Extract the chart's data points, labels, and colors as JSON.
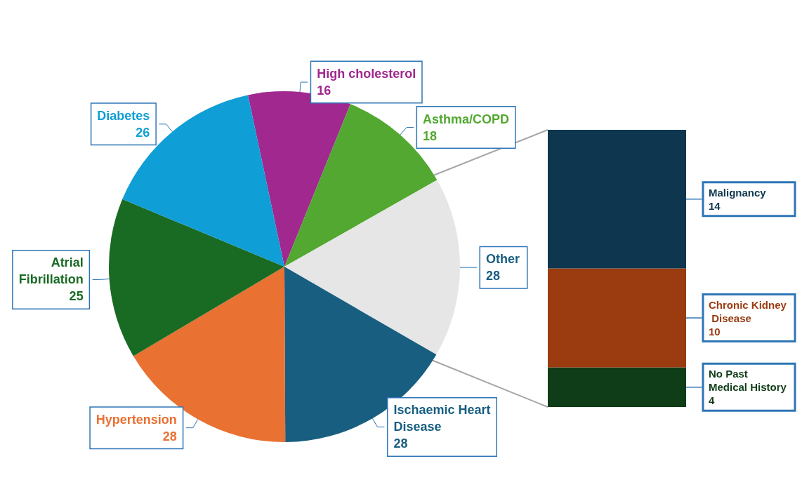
{
  "chart_data": [
    {
      "type": "pie",
      "categories": [
        "High cholesterol",
        "Asthma/COPD",
        "Other",
        "Ischaemic Heart Disease",
        "Hypertension",
        "Atrial Fibrillation",
        "Diabetes"
      ],
      "values": [
        16,
        18,
        28,
        28,
        28,
        25,
        26
      ],
      "colors": [
        "#a0288f",
        "#52a830",
        "#e6e6e6",
        "#175e80",
        "#e97132",
        "#196b24",
        "#0f9ed5"
      ],
      "data_labels": true,
      "legend": false
    },
    {
      "type": "bar",
      "stacked": true,
      "categories": [
        null
      ],
      "data_labels": true,
      "legend": false,
      "series": [
        {
          "name": "No Past Medical History",
          "color": "#0f3d17",
          "values": [
            4
          ]
        },
        {
          "name": "Chronic Kidney Disease",
          "color": "#9a3b10",
          "values": [
            10
          ]
        },
        {
          "name": "Malignancy",
          "color": "#0e374f",
          "values": [
            14
          ]
        }
      ]
    }
  ]
}
